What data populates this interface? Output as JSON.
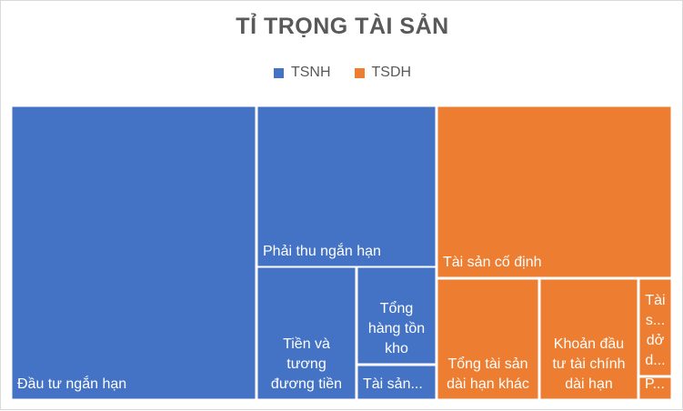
{
  "chart_data": {
    "type": "treemap",
    "title": "TỈ TRỌNG TÀI SẢN",
    "legend": {
      "placement": "top",
      "entries": [
        {
          "name": "TSNH",
          "color": "#4472C4"
        },
        {
          "name": "TSDH",
          "color": "#ED7D31"
        }
      ]
    },
    "tiles": [
      {
        "group": "TSNH",
        "label_lines": [
          "Đầu tư ngắn hạn"
        ],
        "label_pos": "bottom-left"
      },
      {
        "group": "TSNH",
        "label_lines": [
          "Phải thu ngắn hạn"
        ],
        "label_pos": "bottom-left"
      },
      {
        "group": "TSNH",
        "label_lines": [
          "Tiền và",
          "tương",
          "đương tiền"
        ],
        "label_pos": "bottom-center"
      },
      {
        "group": "TSNH",
        "label_lines": [
          "Tổng",
          "hàng tồn",
          "kho"
        ],
        "label_pos": "bottom-center"
      },
      {
        "group": "TSNH",
        "label_lines": [
          "Tài sản..."
        ],
        "label_pos": "bottom-left"
      },
      {
        "group": "TSDH",
        "label_lines": [
          "Tài sản cố định"
        ],
        "label_pos": "bottom-left"
      },
      {
        "group": "TSDH",
        "label_lines": [
          "Tổng tài sản",
          "dài hạn khác"
        ],
        "label_pos": "bottom-center"
      },
      {
        "group": "TSDH",
        "label_lines": [
          "Khoản đầu",
          "tư tài chính",
          "dài hạn"
        ],
        "label_pos": "bottom-center"
      },
      {
        "group": "TSDH",
        "label_lines": [
          "Tài",
          "s...",
          "dở",
          "d..."
        ],
        "label_pos": "bottom-center"
      },
      {
        "group": "TSDH",
        "label_lines": [
          "P..."
        ],
        "label_pos": "bottom-left"
      }
    ]
  }
}
